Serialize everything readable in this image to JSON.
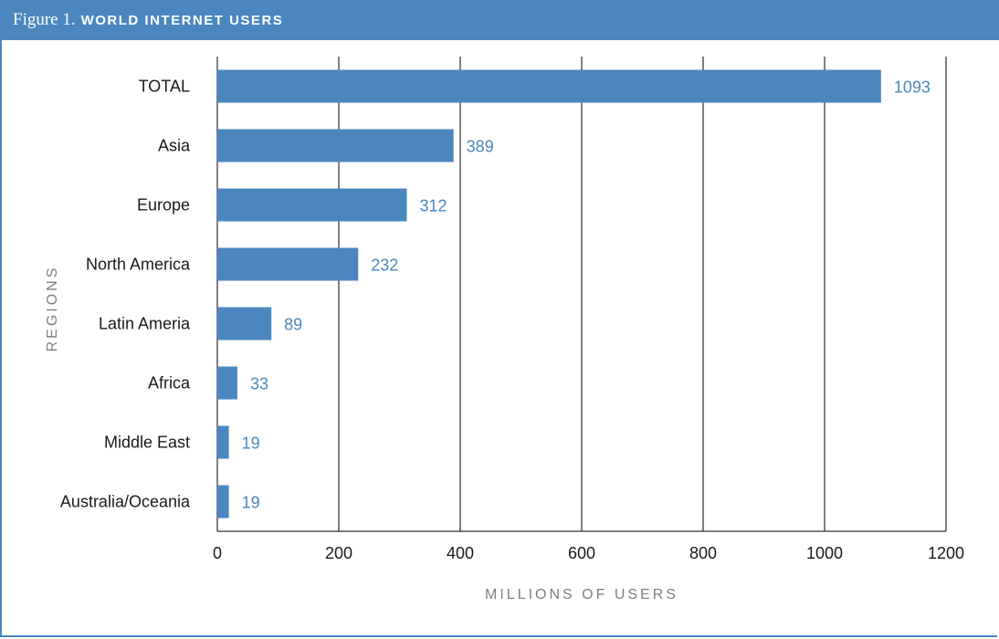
{
  "header": {
    "figure_label": "Figure 1.",
    "title": "WORLD INTERNET USERS"
  },
  "colors": {
    "bar": "#4a87bf",
    "header": "#4a87bf",
    "data_label": "#4a87bf",
    "gridline": "#000000"
  },
  "chart_data": {
    "type": "bar",
    "orientation": "horizontal",
    "title": "WORLD INTERNET USERS",
    "xlabel": "MILLIONS OF USERS",
    "ylabel": "REGIONS",
    "categories": [
      "TOTAL",
      "Asia",
      "Europe",
      "North America",
      "Latin Ameria",
      "Africa",
      "Middle East",
      "Australia/Oceania"
    ],
    "values": [
      1093,
      389,
      312,
      232,
      89,
      33,
      19,
      19
    ],
    "xlim": [
      0,
      1200
    ],
    "xticks": [
      0,
      200,
      400,
      600,
      800,
      1000,
      1200
    ],
    "grid": "vertical",
    "legend": "none"
  }
}
